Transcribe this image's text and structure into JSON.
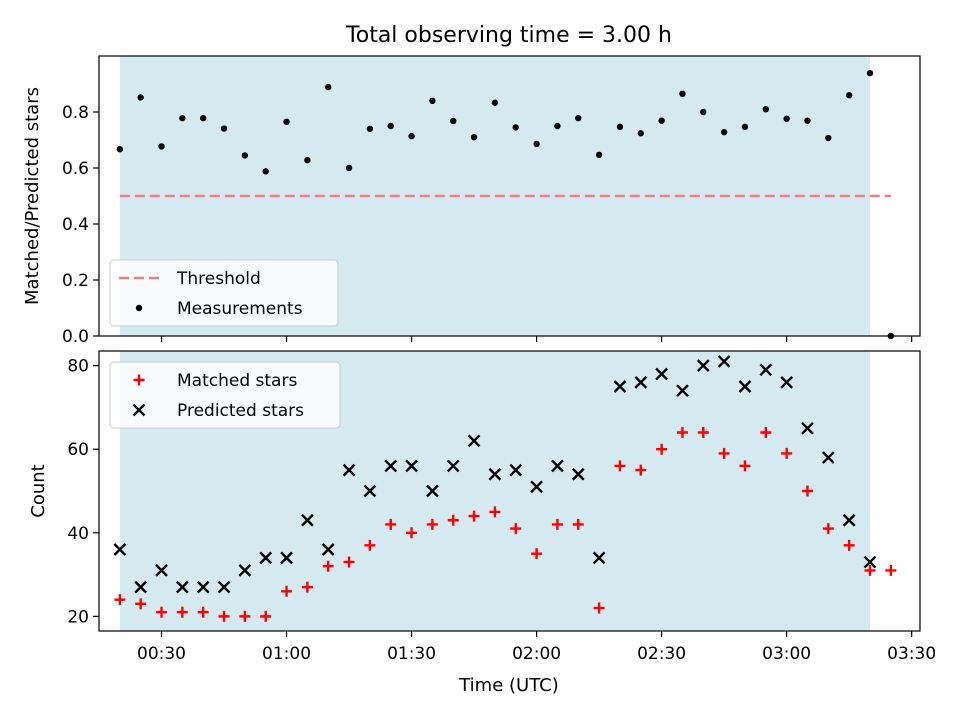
{
  "figure_title": "Total observing time = 3.00 h",
  "colors": {
    "shade": "#d4eaf0",
    "threshold": "#f08080",
    "measurement": "#000000",
    "matched": "#ff0000",
    "predicted": "#000000"
  },
  "chart_data": [
    {
      "type": "scatter",
      "title": "Total observing time = 3.00 h",
      "xlabel": "",
      "ylabel": "Matched/Predicted stars",
      "xlim": [
        "00:15",
        "03:32"
      ],
      "ylim": [
        0,
        1.0
      ],
      "yticks": [
        0.0,
        0.2,
        0.4,
        0.6,
        0.8
      ],
      "ytick_labels": [
        "0.0",
        "0.2",
        "0.4",
        "0.6",
        "0.8"
      ],
      "shaded_interval": [
        "00:20",
        "03:20"
      ],
      "legend": {
        "position": "lower-left",
        "entries": [
          "Threshold",
          "Measurements"
        ]
      },
      "threshold": {
        "name": "Threshold",
        "y": 0.5,
        "x": [
          "00:20",
          "03:25"
        ],
        "style": "dashed"
      },
      "series": [
        {
          "name": "Measurements",
          "marker": "dot",
          "x": [
            "00:20",
            "00:25",
            "00:30",
            "00:35",
            "00:40",
            "00:45",
            "00:50",
            "00:55",
            "01:00",
            "01:05",
            "01:10",
            "01:15",
            "01:20",
            "01:25",
            "01:30",
            "01:35",
            "01:40",
            "01:45",
            "01:50",
            "01:55",
            "02:00",
            "02:05",
            "02:10",
            "02:15",
            "02:20",
            "02:25",
            "02:30",
            "02:35",
            "02:40",
            "02:45",
            "02:50",
            "02:55",
            "03:00",
            "03:05",
            "03:10",
            "03:15",
            "03:20",
            "03:25"
          ],
          "values": [
            0.667,
            0.852,
            0.677,
            0.778,
            0.778,
            0.741,
            0.645,
            0.588,
            0.765,
            0.628,
            0.889,
            0.6,
            0.74,
            0.75,
            0.714,
            0.84,
            0.768,
            0.71,
            0.833,
            0.745,
            0.686,
            0.75,
            0.778,
            0.647,
            0.747,
            0.724,
            0.769,
            0.865,
            0.8,
            0.728,
            0.747,
            0.81,
            0.776,
            0.769,
            0.707,
            0.86,
            0.939,
            0.0
          ]
        }
      ]
    },
    {
      "type": "scatter",
      "title": "",
      "xlabel": "Time (UTC)",
      "ylabel": "Count",
      "xlim": [
        "00:15",
        "03:32"
      ],
      "ylim": [
        16.5,
        83.5
      ],
      "yticks": [
        20,
        40,
        60,
        80
      ],
      "ytick_labels": [
        "20",
        "40",
        "60",
        "80"
      ],
      "xticks": [
        "00:30",
        "01:00",
        "01:30",
        "02:00",
        "02:30",
        "03:00",
        "03:30"
      ],
      "xtick_labels": [
        "00:30",
        "01:00",
        "01:30",
        "02:00",
        "02:30",
        "03:00",
        "03:30"
      ],
      "shaded_interval": [
        "00:20",
        "03:20"
      ],
      "legend": {
        "position": "upper-left",
        "entries": [
          "Matched stars",
          "Predicted stars"
        ]
      },
      "series": [
        {
          "name": "Matched stars",
          "marker": "plus",
          "x": [
            "00:20",
            "00:25",
            "00:30",
            "00:35",
            "00:40",
            "00:45",
            "00:50",
            "00:55",
            "01:00",
            "01:05",
            "01:10",
            "01:15",
            "01:20",
            "01:25",
            "01:30",
            "01:35",
            "01:40",
            "01:45",
            "01:50",
            "01:55",
            "02:00",
            "02:05",
            "02:10",
            "02:15",
            "02:20",
            "02:25",
            "02:30",
            "02:35",
            "02:40",
            "02:45",
            "02:50",
            "02:55",
            "03:00",
            "03:05",
            "03:10",
            "03:15",
            "03:20",
            "03:25"
          ],
          "values": [
            24,
            23,
            21,
            21,
            21,
            20,
            20,
            20,
            26,
            27,
            32,
            33,
            37,
            42,
            40,
            42,
            43,
            44,
            45,
            41,
            35,
            42,
            42,
            22,
            56,
            55,
            60,
            64,
            64,
            59,
            56,
            64,
            59,
            50,
            41,
            37,
            31,
            31
          ]
        },
        {
          "name": "Predicted stars",
          "marker": "x",
          "x": [
            "00:20",
            "00:25",
            "00:30",
            "00:35",
            "00:40",
            "00:45",
            "00:50",
            "00:55",
            "01:00",
            "01:05",
            "01:10",
            "01:15",
            "01:20",
            "01:25",
            "01:30",
            "01:35",
            "01:40",
            "01:45",
            "01:50",
            "01:55",
            "02:00",
            "02:05",
            "02:10",
            "02:15",
            "02:20",
            "02:25",
            "02:30",
            "02:35",
            "02:40",
            "02:45",
            "02:50",
            "02:55",
            "03:00",
            "03:05",
            "03:10",
            "03:15",
            "03:20"
          ],
          "values": [
            36,
            27,
            31,
            27,
            27,
            27,
            31,
            34,
            34,
            43,
            36,
            55,
            50,
            56,
            56,
            50,
            56,
            62,
            54,
            55,
            51,
            56,
            54,
            34,
            75,
            76,
            78,
            74,
            80,
            81,
            75,
            79,
            76,
            65,
            58,
            43,
            33
          ]
        }
      ]
    }
  ]
}
